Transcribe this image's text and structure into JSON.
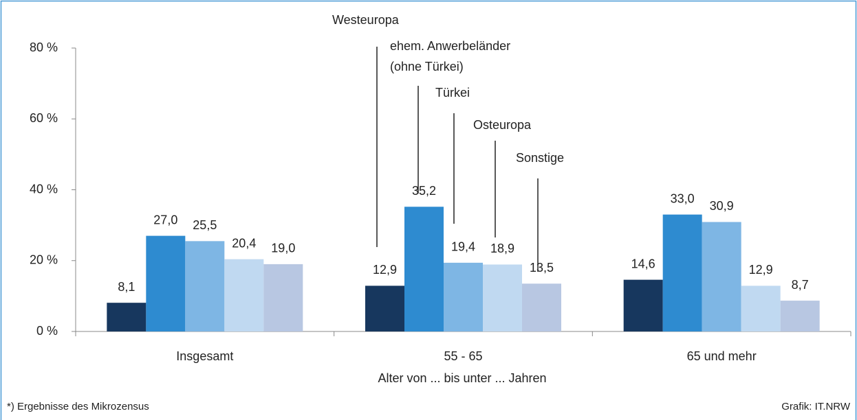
{
  "chart_data": {
    "type": "bar",
    "x_label": "Alter von ... bis unter ... Jahren",
    "footnote": "*) Ergebnisse des Mikrozensus",
    "source": "Grafik: IT.NRW",
    "categories": [
      "Insgesamt",
      "55 - 65",
      "65 und mehr"
    ],
    "series": [
      {
        "name": "Westeuropa",
        "color": "#17375e",
        "values": [
          8.1,
          12.9,
          14.6
        ],
        "value_labels": [
          "8,1",
          "12,9",
          "14,6"
        ]
      },
      {
        "name": "ehem. Anwerbeländer (ohne Türkei)",
        "color": "#2e8bd0",
        "values": [
          27.0,
          35.2,
          33.0
        ],
        "value_labels": [
          "27,0",
          "35,2",
          "33,0"
        ]
      },
      {
        "name": "Türkei",
        "color": "#7eb6e4",
        "values": [
          25.5,
          19.4,
          30.9
        ],
        "value_labels": [
          "25,5",
          "19,4",
          "30,9"
        ]
      },
      {
        "name": "Osteuropa",
        "color": "#c0d9f1",
        "values": [
          20.4,
          18.9,
          12.9
        ],
        "value_labels": [
          "20,4",
          "18,9",
          "12,9"
        ]
      },
      {
        "name": "Sonstige",
        "color": "#b8c7e2",
        "values": [
          19.0,
          13.5,
          8.7
        ],
        "value_labels": [
          "19,0",
          "13,5",
          "8,7"
        ]
      }
    ],
    "ylim": [
      0,
      80
    ],
    "yticks": [
      {
        "value": 0,
        "label": "0 %"
      },
      {
        "value": 20,
        "label": "20 %"
      },
      {
        "value": 40,
        "label": "40 %"
      },
      {
        "value": 60,
        "label": "60 %"
      },
      {
        "value": 80,
        "label": "80 %"
      }
    ],
    "grid": false
  }
}
